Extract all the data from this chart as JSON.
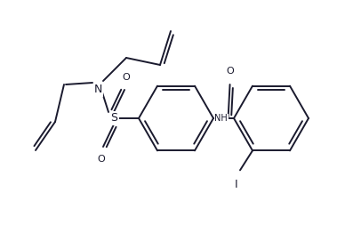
{
  "background_color": "#ffffff",
  "line_color": "#1a1a2e",
  "line_width": 1.4,
  "figsize": [
    3.88,
    2.71
  ],
  "dpi": 100,
  "xlim": [
    0,
    388
  ],
  "ylim": [
    0,
    271
  ]
}
